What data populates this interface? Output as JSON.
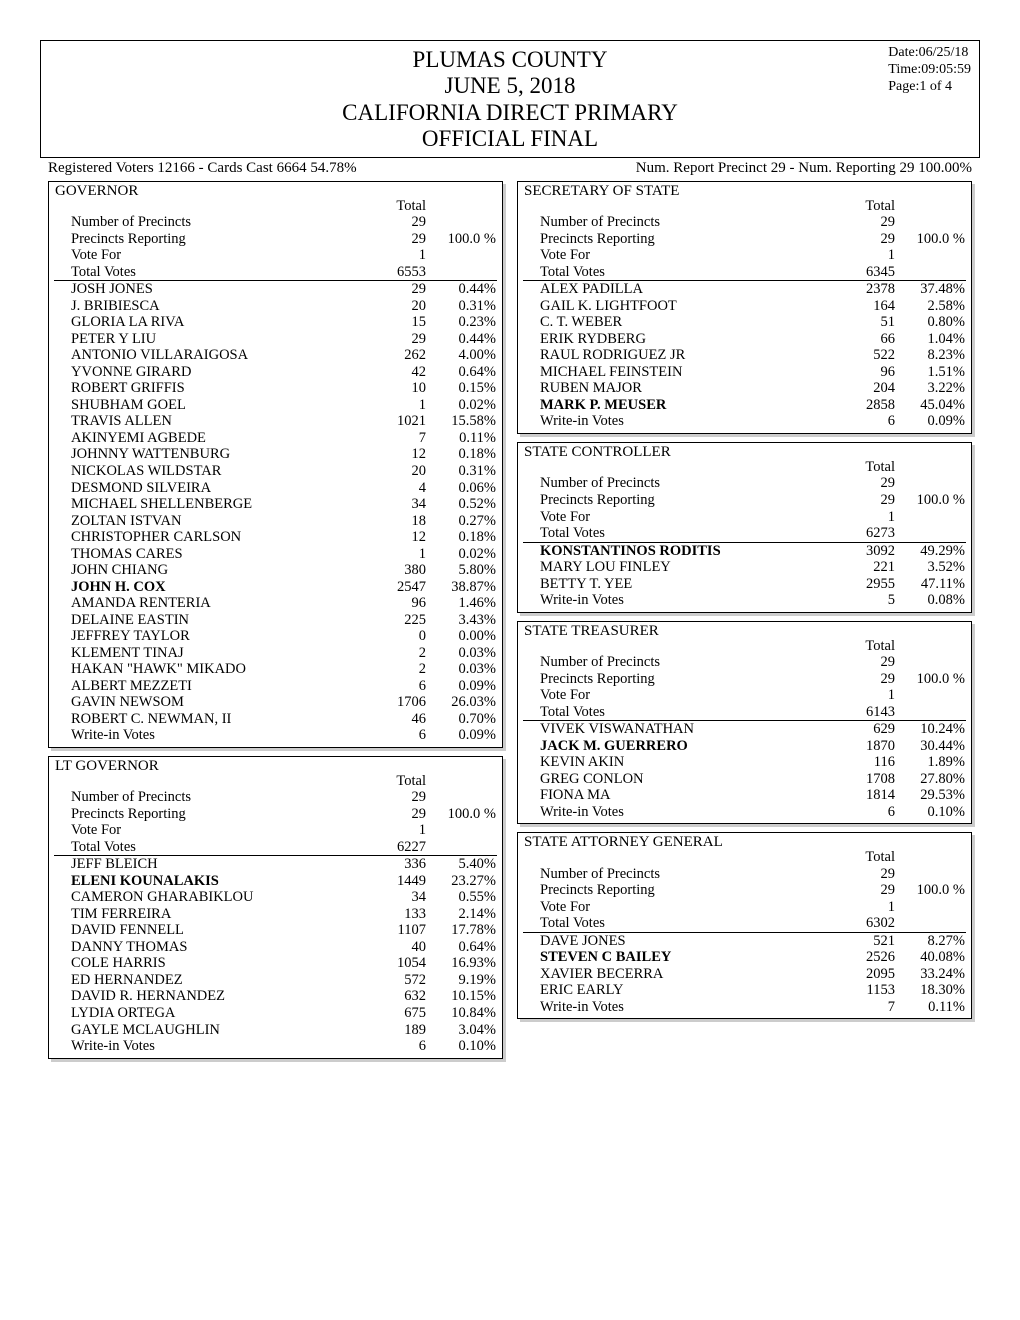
{
  "header": {
    "lines": [
      "PLUMAS COUNTY",
      "JUNE 5, 2018",
      "CALIFORNIA DIRECT PRIMARY",
      "OFFICIAL FINAL"
    ],
    "date": "Date:06/25/18",
    "time": "Time:09:05:59",
    "page": "Page:1 of 4"
  },
  "stats": {
    "left": "Registered Voters 12166 - Cards Cast 6664   54.78%",
    "right": "Num. Report Precinct 29 - Num. Reporting 29    100.00%"
  },
  "total_label": "Total",
  "races_left": [
    {
      "title": "GOVERNOR",
      "header": [
        {
          "name": "Number of Precincts",
          "val": "29",
          "pct": ""
        },
        {
          "name": "Precincts Reporting",
          "val": "29",
          "pct": "100.0  %"
        },
        {
          "name": "Vote For",
          "val": "1",
          "pct": ""
        },
        {
          "name": "Total Votes",
          "val": "6553",
          "pct": ""
        }
      ],
      "candidates": [
        {
          "name": "JOSH JONES",
          "val": "29",
          "pct": "0.44%"
        },
        {
          "name": "J. BRIBIESCA",
          "val": "20",
          "pct": "0.31%"
        },
        {
          "name": "GLORIA LA RIVA",
          "val": "15",
          "pct": "0.23%"
        },
        {
          "name": "PETER Y LIU",
          "val": "29",
          "pct": "0.44%"
        },
        {
          "name": "ANTONIO VILLARAIGOSA",
          "val": "262",
          "pct": "4.00%"
        },
        {
          "name": "YVONNE GIRARD",
          "val": "42",
          "pct": "0.64%"
        },
        {
          "name": "ROBERT GRIFFIS",
          "val": "10",
          "pct": "0.15%"
        },
        {
          "name": "SHUBHAM GOEL",
          "val": "1",
          "pct": "0.02%"
        },
        {
          "name": "TRAVIS ALLEN",
          "val": "1021",
          "pct": "15.58%"
        },
        {
          "name": "AKINYEMI AGBEDE",
          "val": "7",
          "pct": "0.11%"
        },
        {
          "name": "JOHNNY WATTENBURG",
          "val": "12",
          "pct": "0.18%"
        },
        {
          "name": "NICKOLAS WILDSTAR",
          "val": "20",
          "pct": "0.31%"
        },
        {
          "name": "DESMOND SILVEIRA",
          "val": "4",
          "pct": "0.06%"
        },
        {
          "name": "MICHAEL SHELLENBERGE",
          "val": "34",
          "pct": "0.52%"
        },
        {
          "name": "ZOLTAN ISTVAN",
          "val": "18",
          "pct": "0.27%"
        },
        {
          "name": "CHRISTOPHER CARLSON",
          "val": "12",
          "pct": "0.18%"
        },
        {
          "name": "THOMAS CARES",
          "val": "1",
          "pct": "0.02%"
        },
        {
          "name": "JOHN CHIANG",
          "val": "380",
          "pct": "5.80%"
        },
        {
          "name": "JOHN H. COX",
          "val": "2547",
          "pct": "38.87%",
          "bold": true
        },
        {
          "name": "AMANDA RENTERIA",
          "val": "96",
          "pct": "1.46%"
        },
        {
          "name": "DELAINE EASTIN",
          "val": "225",
          "pct": "3.43%"
        },
        {
          "name": "JEFFREY TAYLOR",
          "val": "0",
          "pct": "0.00%"
        },
        {
          "name": "KLEMENT TINAJ",
          "val": "2",
          "pct": "0.03%"
        },
        {
          "name": "HAKAN \"HAWK\" MIKADO",
          "val": "2",
          "pct": "0.03%"
        },
        {
          "name": "ALBERT MEZZETI",
          "val": "6",
          "pct": "0.09%"
        },
        {
          "name": "GAVIN NEWSOM",
          "val": "1706",
          "pct": "26.03%"
        },
        {
          "name": "ROBERT C. NEWMAN, II",
          "val": "46",
          "pct": "0.70%"
        },
        {
          "name": "Write-in Votes",
          "val": "6",
          "pct": "0.09%"
        }
      ]
    },
    {
      "title": "LT GOVERNOR",
      "header": [
        {
          "name": "Number of Precincts",
          "val": "29",
          "pct": ""
        },
        {
          "name": "Precincts Reporting",
          "val": "29",
          "pct": "100.0  %"
        },
        {
          "name": "Vote For",
          "val": "1",
          "pct": ""
        },
        {
          "name": "Total Votes",
          "val": "6227",
          "pct": ""
        }
      ],
      "candidates": [
        {
          "name": "JEFF BLEICH",
          "val": "336",
          "pct": "5.40%"
        },
        {
          "name": "ELENI KOUNALAKIS",
          "val": "1449",
          "pct": "23.27%",
          "bold": true
        },
        {
          "name": "CAMERON GHARABIKLOU",
          "val": "34",
          "pct": "0.55%"
        },
        {
          "name": "TIM FERREIRA",
          "val": "133",
          "pct": "2.14%"
        },
        {
          "name": "DAVID FENNELL",
          "val": "1107",
          "pct": "17.78%"
        },
        {
          "name": "DANNY THOMAS",
          "val": "40",
          "pct": "0.64%"
        },
        {
          "name": "COLE HARRIS",
          "val": "1054",
          "pct": "16.93%"
        },
        {
          "name": "ED HERNANDEZ",
          "val": "572",
          "pct": "9.19%"
        },
        {
          "name": "DAVID R. HERNANDEZ",
          "val": "632",
          "pct": "10.15%"
        },
        {
          "name": "LYDIA ORTEGA",
          "val": "675",
          "pct": "10.84%"
        },
        {
          "name": "GAYLE MCLAUGHLIN",
          "val": "189",
          "pct": "3.04%"
        },
        {
          "name": "Write-in Votes",
          "val": "6",
          "pct": "0.10%"
        }
      ]
    }
  ],
  "races_right": [
    {
      "title": "SECRETARY OF STATE",
      "header": [
        {
          "name": "Number of Precincts",
          "val": "29",
          "pct": ""
        },
        {
          "name": "Precincts Reporting",
          "val": "29",
          "pct": "100.0  %"
        },
        {
          "name": "Vote For",
          "val": "1",
          "pct": ""
        },
        {
          "name": "Total Votes",
          "val": "6345",
          "pct": ""
        }
      ],
      "candidates": [
        {
          "name": "ALEX PADILLA",
          "val": "2378",
          "pct": "37.48%"
        },
        {
          "name": "GAIL K. LIGHTFOOT",
          "val": "164",
          "pct": "2.58%"
        },
        {
          "name": "C. T. WEBER",
          "val": "51",
          "pct": "0.80%"
        },
        {
          "name": "ERIK RYDBERG",
          "val": "66",
          "pct": "1.04%"
        },
        {
          "name": "RAUL RODRIGUEZ JR",
          "val": "522",
          "pct": "8.23%"
        },
        {
          "name": "MICHAEL FEINSTEIN",
          "val": "96",
          "pct": "1.51%"
        },
        {
          "name": "RUBEN MAJOR",
          "val": "204",
          "pct": "3.22%"
        },
        {
          "name": "MARK P. MEUSER",
          "val": "2858",
          "pct": "45.04%",
          "bold": true
        },
        {
          "name": "Write-in Votes",
          "val": "6",
          "pct": "0.09%"
        }
      ]
    },
    {
      "title": "STATE CONTROLLER",
      "header": [
        {
          "name": "Number of Precincts",
          "val": "29",
          "pct": ""
        },
        {
          "name": "Precincts Reporting",
          "val": "29",
          "pct": "100.0  %"
        },
        {
          "name": "Vote For",
          "val": "1",
          "pct": ""
        },
        {
          "name": "Total Votes",
          "val": "6273",
          "pct": ""
        }
      ],
      "candidates": [
        {
          "name": "KONSTANTINOS RODITIS",
          "val": "3092",
          "pct": "49.29%",
          "bold": true
        },
        {
          "name": "MARY LOU FINLEY",
          "val": "221",
          "pct": "3.52%"
        },
        {
          "name": "BETTY T. YEE",
          "val": "2955",
          "pct": "47.11%"
        },
        {
          "name": "Write-in Votes",
          "val": "5",
          "pct": "0.08%"
        }
      ]
    },
    {
      "title": "STATE TREASURER",
      "header": [
        {
          "name": "Number of Precincts",
          "val": "29",
          "pct": ""
        },
        {
          "name": "Precincts Reporting",
          "val": "29",
          "pct": "100.0  %"
        },
        {
          "name": "Vote For",
          "val": "1",
          "pct": ""
        },
        {
          "name": "Total Votes",
          "val": "6143",
          "pct": ""
        }
      ],
      "candidates": [
        {
          "name": "VIVEK VISWANATHAN",
          "val": "629",
          "pct": "10.24%"
        },
        {
          "name": "JACK M. GUERRERO",
          "val": "1870",
          "pct": "30.44%",
          "bold": true
        },
        {
          "name": "KEVIN AKIN",
          "val": "116",
          "pct": "1.89%"
        },
        {
          "name": "GREG CONLON",
          "val": "1708",
          "pct": "27.80%"
        },
        {
          "name": "FIONA MA",
          "val": "1814",
          "pct": "29.53%"
        },
        {
          "name": "Write-in Votes",
          "val": "6",
          "pct": "0.10%"
        }
      ]
    },
    {
      "title": "STATE ATTORNEY GENERAL",
      "header": [
        {
          "name": "Number of Precincts",
          "val": "29",
          "pct": ""
        },
        {
          "name": "Precincts Reporting",
          "val": "29",
          "pct": "100.0  %"
        },
        {
          "name": "Vote For",
          "val": "1",
          "pct": ""
        },
        {
          "name": "Total Votes",
          "val": "6302",
          "pct": ""
        }
      ],
      "candidates": [
        {
          "name": "DAVE JONES",
          "val": "521",
          "pct": "8.27%"
        },
        {
          "name": "STEVEN C BAILEY",
          "val": "2526",
          "pct": "40.08%",
          "bold": true
        },
        {
          "name": "XAVIER BECERRA",
          "val": "2095",
          "pct": "33.24%"
        },
        {
          "name": "ERIC EARLY",
          "val": "1153",
          "pct": "18.30%"
        },
        {
          "name": "Write-in Votes",
          "val": "7",
          "pct": "0.11%"
        }
      ]
    }
  ]
}
